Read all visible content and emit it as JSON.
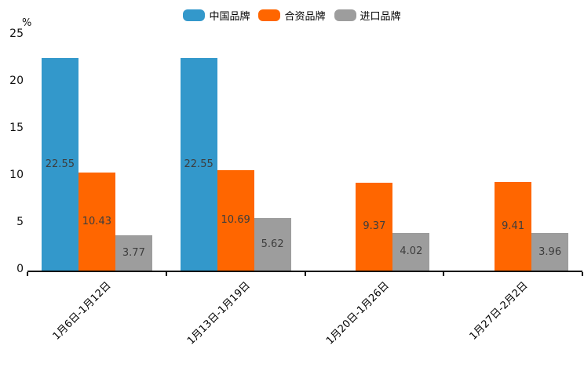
{
  "chart_data": {
    "type": "bar",
    "title": "",
    "unit_label": "%",
    "categories": [
      "1月6日-1月12日",
      "1月13日-1月19日",
      "1月20日-1月26日",
      "1月27日-2月2日"
    ],
    "series": [
      {
        "name": "中国品牌",
        "color": "#3398CB",
        "values": [
          22.55,
          22.55,
          null,
          null
        ]
      },
      {
        "name": "合资品牌",
        "color": "#FF6600",
        "values": [
          10.43,
          10.69,
          9.37,
          9.41
        ]
      },
      {
        "name": "进口品牌",
        "color": "#9D9D9D",
        "values": [
          3.77,
          5.62,
          4.02,
          3.96
        ]
      }
    ],
    "ylim": [
      0,
      25
    ],
    "yticks": [
      0,
      5,
      10,
      15,
      20,
      25
    ],
    "grid": false,
    "legend_position": "top",
    "value_labels": true,
    "value_label_color": "#3d3d3d",
    "axis_color": "#000000",
    "background_color": "#ffffff"
  }
}
